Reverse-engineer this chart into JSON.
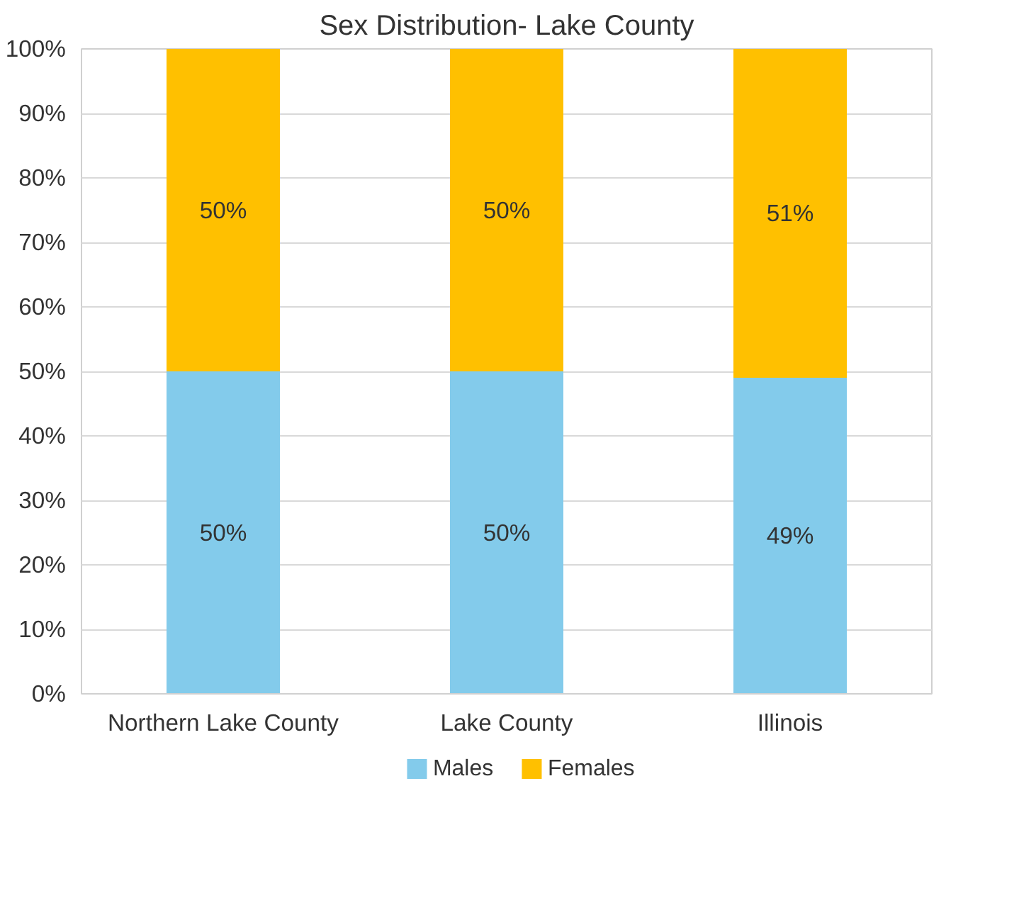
{
  "chart_data": {
    "type": "bar",
    "title": "Sex Distribution- Lake County",
    "categories": [
      "Northern Lake County",
      "Lake County",
      "Illinois"
    ],
    "stacked": true,
    "series": [
      {
        "name": "Males",
        "color": "#83cbeb",
        "values": [
          50,
          50,
          49
        ],
        "value_labels": [
          "50%",
          "50%",
          "49%"
        ]
      },
      {
        "name": "Females",
        "color": "#ffc000",
        "values": [
          50,
          50,
          51
        ],
        "value_labels": [
          "50%",
          "50%",
          "51%"
        ]
      }
    ],
    "ylim": [
      0,
      100
    ],
    "yticks": [
      {
        "value": 0,
        "label": "0%"
      },
      {
        "value": 10,
        "label": "10%"
      },
      {
        "value": 20,
        "label": "20%"
      },
      {
        "value": 30,
        "label": "30%"
      },
      {
        "value": 40,
        "label": "40%"
      },
      {
        "value": 50,
        "label": "50%"
      },
      {
        "value": 60,
        "label": "60%"
      },
      {
        "value": 70,
        "label": "70%"
      },
      {
        "value": 80,
        "label": "80%"
      },
      {
        "value": 90,
        "label": "90%"
      },
      {
        "value": 100,
        "label": "100%"
      }
    ],
    "grid": "y",
    "legend": "bottom",
    "data_labels": true
  }
}
